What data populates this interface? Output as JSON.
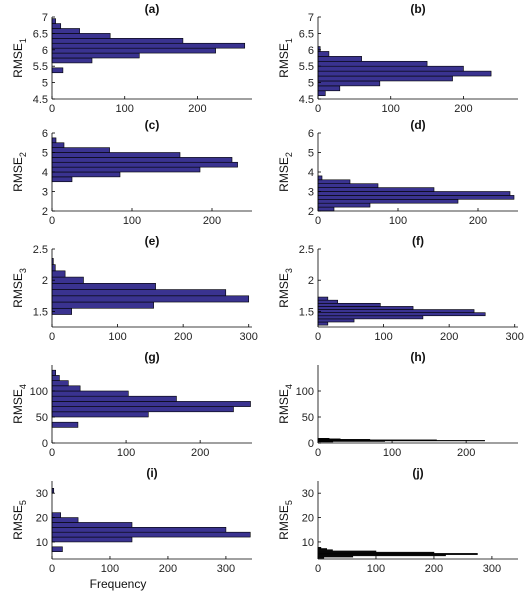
{
  "figure": {
    "xlabel": "Frequency"
  },
  "chart_data": [
    {
      "type": "bar",
      "orientation": "horizontal",
      "title": "(a)",
      "ylabel_base": "RMSE",
      "ylabel_sub": "1",
      "xlabel": "",
      "xlim": [
        0,
        275
      ],
      "xticks": [
        0,
        100,
        200
      ],
      "ylim": [
        4.5,
        7
      ],
      "yticks": [
        4.5,
        5,
        5.5,
        6,
        6.5,
        7
      ],
      "bar_color": "#3a3390",
      "bins": [
        {
          "y0": 5.3,
          "y1": 5.45,
          "value": 15
        },
        {
          "y0": 5.45,
          "y1": 5.6,
          "value": 0
        },
        {
          "y0": 5.6,
          "y1": 5.75,
          "value": 55
        },
        {
          "y0": 5.75,
          "y1": 5.9,
          "value": 120
        },
        {
          "y0": 5.9,
          "y1": 6.05,
          "value": 225
        },
        {
          "y0": 6.05,
          "y1": 6.2,
          "value": 265
        },
        {
          "y0": 6.2,
          "y1": 6.35,
          "value": 180
        },
        {
          "y0": 6.35,
          "y1": 6.5,
          "value": 80
        },
        {
          "y0": 6.5,
          "y1": 6.65,
          "value": 38
        },
        {
          "y0": 6.65,
          "y1": 6.8,
          "value": 12
        },
        {
          "y0": 6.8,
          "y1": 6.95,
          "value": 5
        }
      ]
    },
    {
      "type": "bar",
      "orientation": "horizontal",
      "title": "(b)",
      "ylabel_base": "RMSE",
      "ylabel_sub": "1",
      "xlabel": "",
      "xlim": [
        0,
        275
      ],
      "xticks": [
        0,
        100,
        200
      ],
      "ylim": [
        4.5,
        7
      ],
      "yticks": [
        4.5,
        5,
        5.5,
        6,
        6.5,
        7
      ],
      "bar_color": "#3a3390",
      "bins": [
        {
          "y0": 4.6,
          "y1": 4.75,
          "value": 10
        },
        {
          "y0": 4.75,
          "y1": 4.9,
          "value": 30
        },
        {
          "y0": 4.9,
          "y1": 5.05,
          "value": 85
        },
        {
          "y0": 5.05,
          "y1": 5.2,
          "value": 185
        },
        {
          "y0": 5.2,
          "y1": 5.35,
          "value": 238
        },
        {
          "y0": 5.35,
          "y1": 5.5,
          "value": 200
        },
        {
          "y0": 5.5,
          "y1": 5.65,
          "value": 150
        },
        {
          "y0": 5.65,
          "y1": 5.8,
          "value": 60
        },
        {
          "y0": 5.8,
          "y1": 5.95,
          "value": 15
        },
        {
          "y0": 5.95,
          "y1": 6.1,
          "value": 3
        }
      ]
    },
    {
      "type": "bar",
      "orientation": "horizontal",
      "title": "(c)",
      "ylabel_base": "RMSE",
      "ylabel_sub": "2",
      "xlabel": "",
      "xlim": [
        0,
        250
      ],
      "xticks": [
        0,
        100,
        200
      ],
      "ylim": [
        2,
        6
      ],
      "yticks": [
        2,
        3,
        4,
        5,
        6
      ],
      "bar_color": "#3a3390",
      "bins": [
        {
          "y0": 3.5,
          "y1": 3.75,
          "value": 25
        },
        {
          "y0": 3.75,
          "y1": 4.0,
          "value": 85
        },
        {
          "y0": 4.0,
          "y1": 4.25,
          "value": 185
        },
        {
          "y0": 4.25,
          "y1": 4.5,
          "value": 232
        },
        {
          "y0": 4.5,
          "y1": 4.75,
          "value": 225
        },
        {
          "y0": 4.75,
          "y1": 5.0,
          "value": 160
        },
        {
          "y0": 5.0,
          "y1": 5.25,
          "value": 72
        },
        {
          "y0": 5.25,
          "y1": 5.5,
          "value": 15
        },
        {
          "y0": 5.5,
          "y1": 5.75,
          "value": 5
        }
      ]
    },
    {
      "type": "bar",
      "orientation": "horizontal",
      "title": "(d)",
      "ylabel_base": "RMSE",
      "ylabel_sub": "2",
      "xlabel": "",
      "xlim": [
        0,
        250
      ],
      "xticks": [
        0,
        100,
        200
      ],
      "ylim": [
        2,
        6
      ],
      "yticks": [
        2,
        3,
        4,
        5,
        6
      ],
      "bar_color": "#3a3390",
      "bins": [
        {
          "y0": 2.0,
          "y1": 2.2,
          "value": 20
        },
        {
          "y0": 2.2,
          "y1": 2.4,
          "value": 65
        },
        {
          "y0": 2.4,
          "y1": 2.6,
          "value": 175
        },
        {
          "y0": 2.6,
          "y1": 2.8,
          "value": 245
        },
        {
          "y0": 2.8,
          "y1": 3.0,
          "value": 240
        },
        {
          "y0": 3.0,
          "y1": 3.2,
          "value": 145
        },
        {
          "y0": 3.2,
          "y1": 3.4,
          "value": 75
        },
        {
          "y0": 3.4,
          "y1": 3.6,
          "value": 40
        },
        {
          "y0": 3.6,
          "y1": 3.8,
          "value": 5
        }
      ]
    },
    {
      "type": "bar",
      "orientation": "horizontal",
      "title": "(e)",
      "ylabel_base": "RMSE",
      "ylabel_sub": "3",
      "xlabel": "",
      "xlim": [
        0,
        305
      ],
      "xticks": [
        0,
        100,
        200,
        300
      ],
      "ylim": [
        1.25,
        2.5
      ],
      "yticks": [
        1.5,
        2,
        2.5
      ],
      "bar_color": "#3a3390",
      "bins": [
        {
          "y0": 1.45,
          "y1": 1.55,
          "value": 30
        },
        {
          "y0": 1.55,
          "y1": 1.65,
          "value": 155
        },
        {
          "y0": 1.65,
          "y1": 1.75,
          "value": 300
        },
        {
          "y0": 1.75,
          "y1": 1.85,
          "value": 265
        },
        {
          "y0": 1.85,
          "y1": 1.95,
          "value": 158
        },
        {
          "y0": 1.95,
          "y1": 2.05,
          "value": 48
        },
        {
          "y0": 2.05,
          "y1": 2.15,
          "value": 20
        },
        {
          "y0": 2.15,
          "y1": 2.25,
          "value": 5
        },
        {
          "y0": 2.25,
          "y1": 2.35,
          "value": 2
        }
      ]
    },
    {
      "type": "bar",
      "orientation": "horizontal",
      "title": "(f)",
      "ylabel_base": "RMSE",
      "ylabel_sub": "3",
      "xlabel": "",
      "xlim": [
        0,
        305
      ],
      "xticks": [
        0,
        100,
        200,
        300
      ],
      "ylim": [
        1.25,
        2.5
      ],
      "yticks": [
        1.5,
        2,
        2.5
      ],
      "bar_color": "#3a3390",
      "bins": [
        {
          "y0": 1.28,
          "y1": 1.33,
          "value": 15
        },
        {
          "y0": 1.33,
          "y1": 1.38,
          "value": 55
        },
        {
          "y0": 1.38,
          "y1": 1.43,
          "value": 160
        },
        {
          "y0": 1.43,
          "y1": 1.48,
          "value": 255
        },
        {
          "y0": 1.48,
          "y1": 1.53,
          "value": 238
        },
        {
          "y0": 1.53,
          "y1": 1.58,
          "value": 145
        },
        {
          "y0": 1.58,
          "y1": 1.63,
          "value": 95
        },
        {
          "y0": 1.63,
          "y1": 1.68,
          "value": 30
        },
        {
          "y0": 1.68,
          "y1": 1.73,
          "value": 15
        }
      ]
    },
    {
      "type": "bar",
      "orientation": "horizontal",
      "title": "(g)",
      "ylabel_base": "RMSE",
      "ylabel_sub": "4",
      "xlabel": "",
      "xlim": [
        0,
        270
      ],
      "xticks": [
        0,
        100,
        200
      ],
      "ylim": [
        0,
        150
      ],
      "yticks": [
        0,
        50,
        100
      ],
      "bar_color": "#3a3390",
      "bins": [
        {
          "y0": 30,
          "y1": 40,
          "value": 35
        },
        {
          "y0": 40,
          "y1": 50,
          "value": 0
        },
        {
          "y0": 50,
          "y1": 60,
          "value": 130
        },
        {
          "y0": 60,
          "y1": 70,
          "value": 245
        },
        {
          "y0": 70,
          "y1": 80,
          "value": 268
        },
        {
          "y0": 80,
          "y1": 90,
          "value": 168
        },
        {
          "y0": 90,
          "y1": 100,
          "value": 103
        },
        {
          "y0": 100,
          "y1": 110,
          "value": 38
        },
        {
          "y0": 110,
          "y1": 120,
          "value": 22
        },
        {
          "y0": 120,
          "y1": 130,
          "value": 10
        },
        {
          "y0": 130,
          "y1": 140,
          "value": 5
        }
      ]
    },
    {
      "type": "bar",
      "orientation": "horizontal",
      "title": "(h)",
      "ylabel_base": "RMSE",
      "ylabel_sub": "4",
      "xlabel": "",
      "xlim": [
        0,
        270
      ],
      "xticks": [
        0,
        100,
        200
      ],
      "ylim": [
        0,
        150
      ],
      "yticks": [
        0,
        50,
        100
      ],
      "bar_color": "#111111",
      "bins": [
        {
          "y0": 2,
          "y1": 3,
          "value": 20
        },
        {
          "y0": 3,
          "y1": 4,
          "value": 90
        },
        {
          "y0": 4,
          "y1": 5,
          "value": 225
        },
        {
          "y0": 5,
          "y1": 6,
          "value": 160
        },
        {
          "y0": 6,
          "y1": 7,
          "value": 70
        },
        {
          "y0": 7,
          "y1": 8,
          "value": 30
        },
        {
          "y0": 8,
          "y1": 9,
          "value": 15
        }
      ]
    },
    {
      "type": "bar",
      "orientation": "horizontal",
      "title": "(i)",
      "ylabel_base": "RMSE",
      "ylabel_sub": "5",
      "xlabel": "Frequency",
      "xlim": [
        0,
        345
      ],
      "xticks": [
        0,
        100,
        200,
        300
      ],
      "ylim": [
        3,
        35
      ],
      "yticks": [
        10,
        20,
        30
      ],
      "bar_color": "#3a3390",
      "bins": [
        {
          "y0": 6,
          "y1": 8,
          "value": 18
        },
        {
          "y0": 8,
          "y1": 10,
          "value": 0
        },
        {
          "y0": 10,
          "y1": 12,
          "value": 138
        },
        {
          "y0": 12,
          "y1": 14,
          "value": 342
        },
        {
          "y0": 14,
          "y1": 16,
          "value": 300
        },
        {
          "y0": 16,
          "y1": 18,
          "value": 138
        },
        {
          "y0": 18,
          "y1": 20,
          "value": 45
        },
        {
          "y0": 20,
          "y1": 22,
          "value": 15
        },
        {
          "y0": 22,
          "y1": 24,
          "value": 0
        },
        {
          "y0": 24,
          "y1": 26,
          "value": 0
        },
        {
          "y0": 26,
          "y1": 28,
          "value": 0
        },
        {
          "y0": 28,
          "y1": 30,
          "value": 0
        },
        {
          "y0": 30,
          "y1": 32,
          "value": 3
        }
      ]
    },
    {
      "type": "bar",
      "orientation": "horizontal",
      "title": "(j)",
      "ylabel_base": "RMSE",
      "ylabel_sub": "5",
      "xlabel": "Frequency",
      "xlim": [
        0,
        345
      ],
      "xticks": [
        0,
        100,
        200,
        300
      ],
      "ylim": [
        3,
        35
      ],
      "yticks": [
        10,
        20,
        30
      ],
      "bar_color": "#111111",
      "bins": [
        {
          "y0": 3.3,
          "y1": 3.8,
          "value": 10
        },
        {
          "y0": 3.8,
          "y1": 4.3,
          "value": 60
        },
        {
          "y0": 4.3,
          "y1": 4.8,
          "value": 220
        },
        {
          "y0": 4.8,
          "y1": 5.3,
          "value": 275
        },
        {
          "y0": 5.3,
          "y1": 5.8,
          "value": 200
        },
        {
          "y0": 5.8,
          "y1": 6.3,
          "value": 100
        },
        {
          "y0": 6.3,
          "y1": 6.8,
          "value": 25
        },
        {
          "y0": 6.8,
          "y1": 7.3,
          "value": 15
        },
        {
          "y0": 7.3,
          "y1": 7.8,
          "value": 5
        }
      ]
    }
  ]
}
